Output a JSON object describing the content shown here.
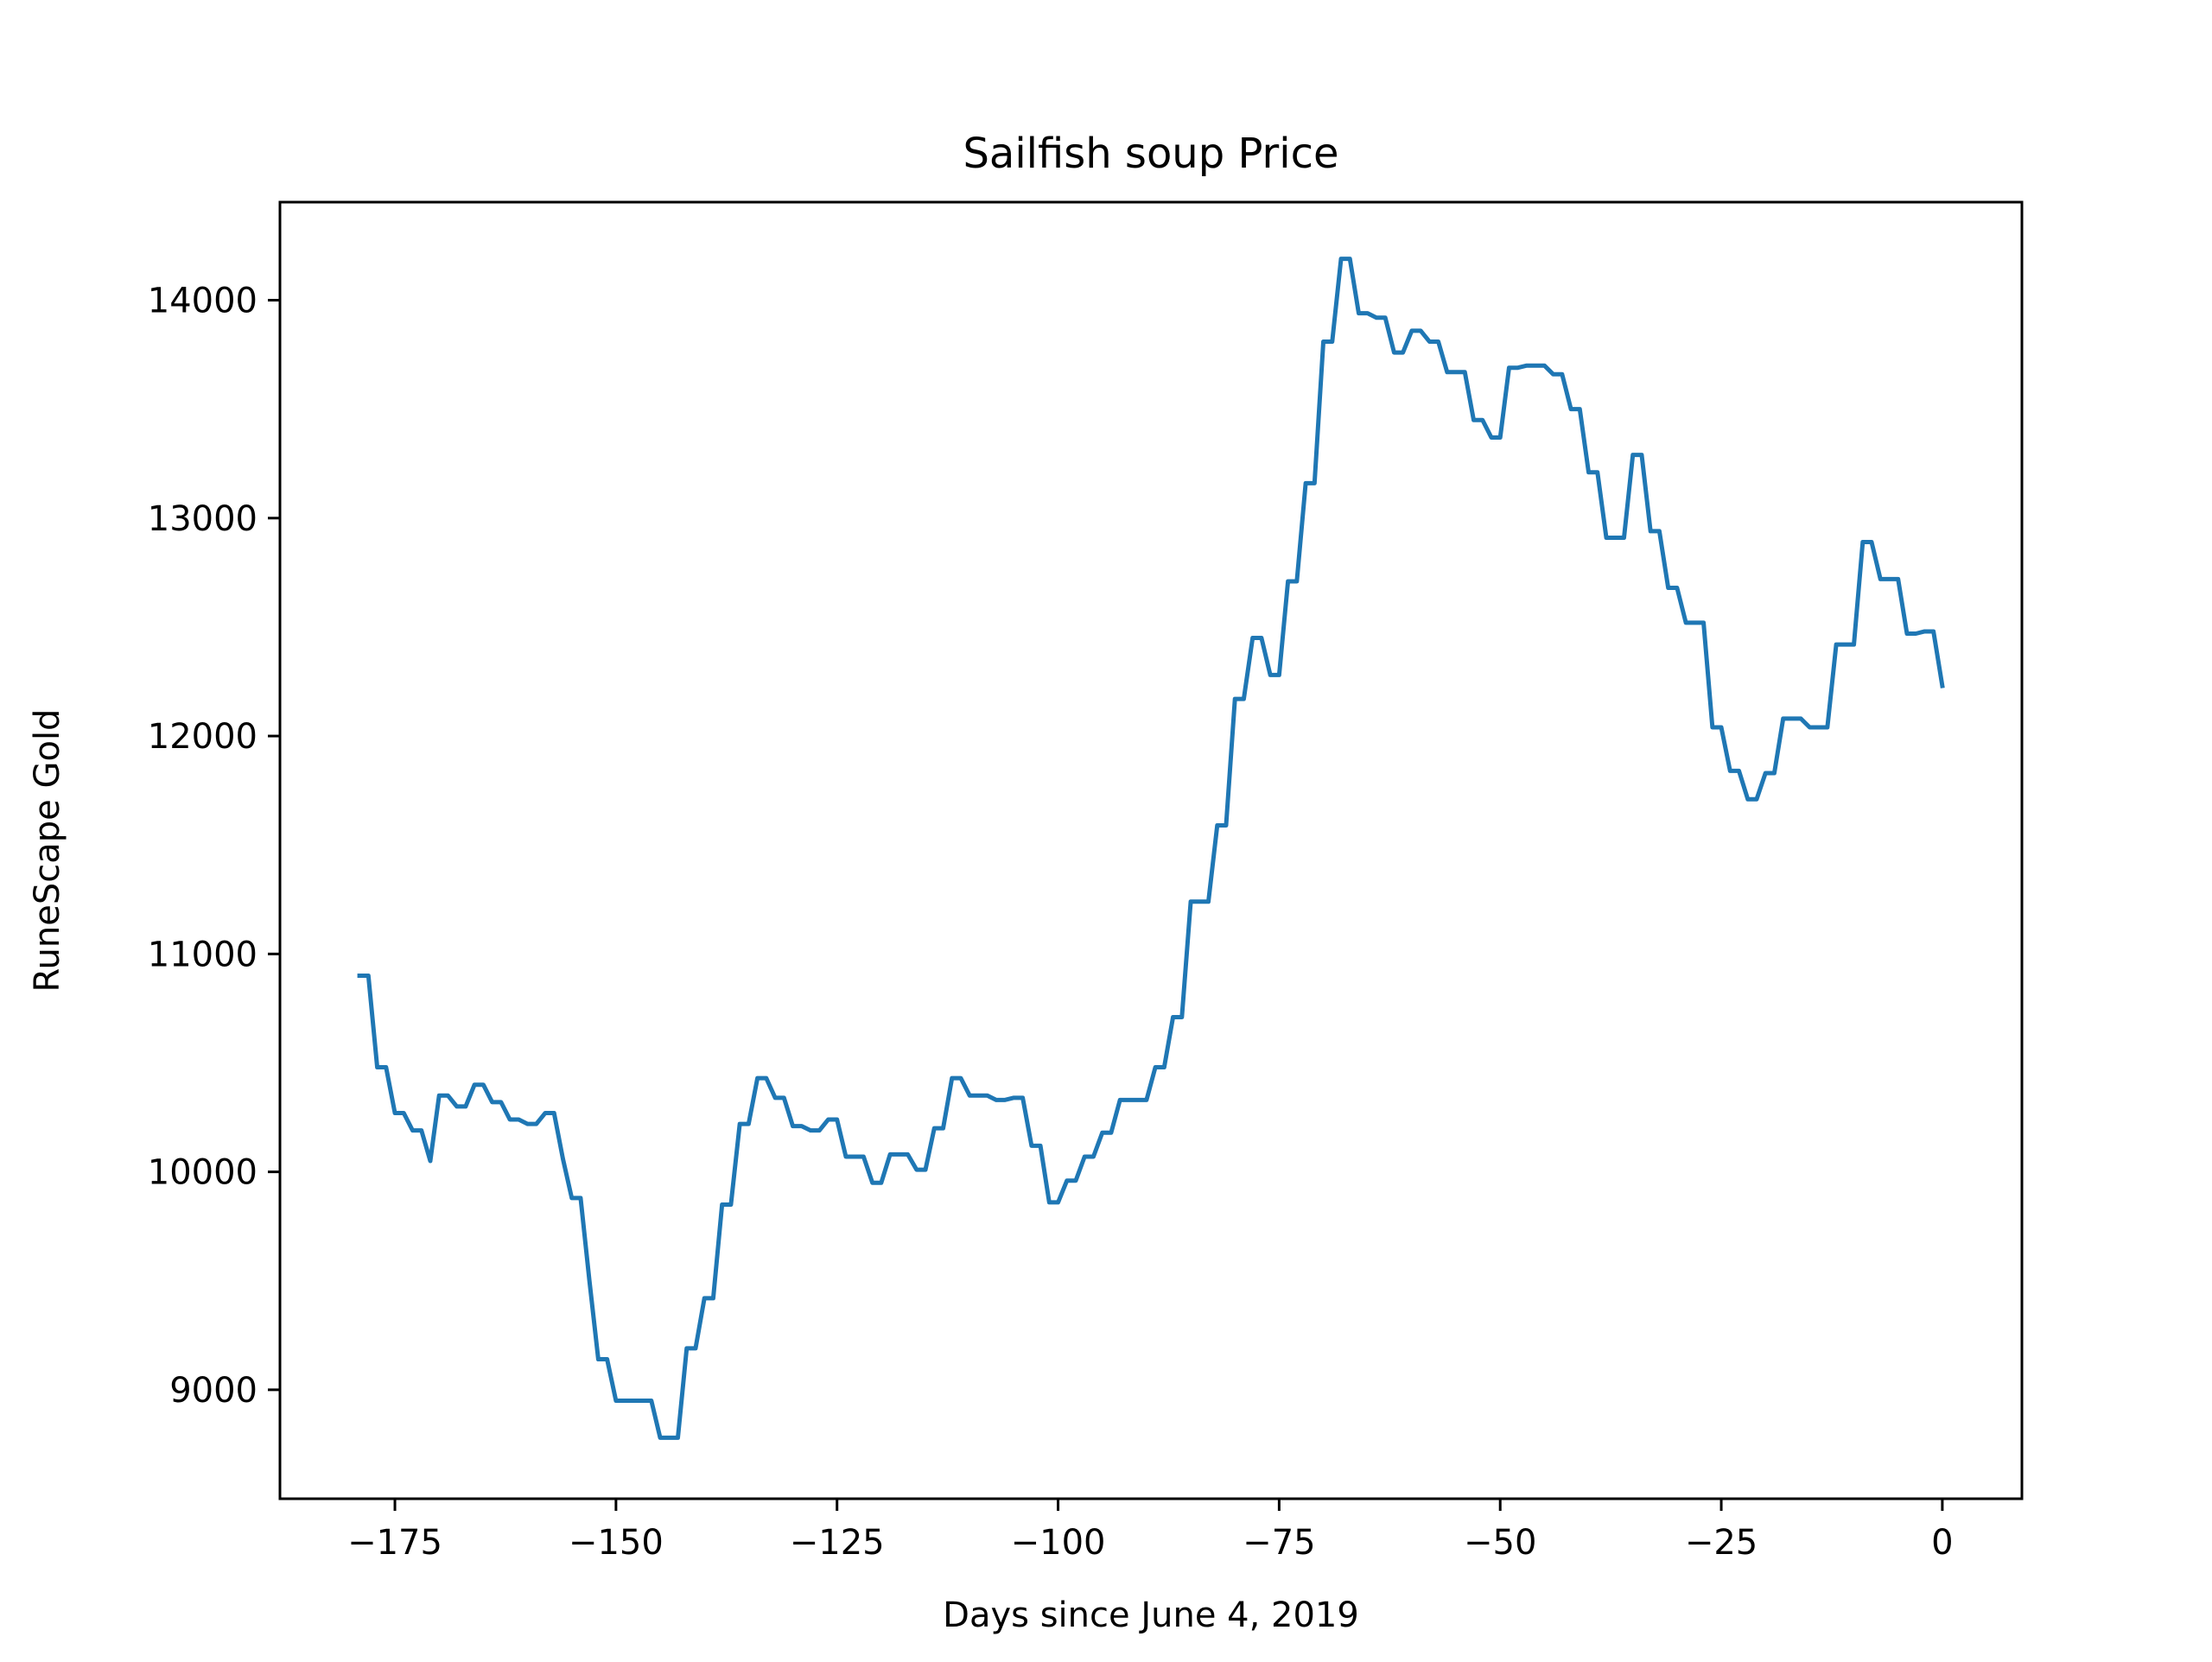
{
  "chart_data": {
    "type": "line",
    "title": "Sailfish soup Price",
    "xlabel": "Days since June 4, 2019",
    "ylabel": "RuneScape Gold",
    "xlim": [
      -188,
      9
    ],
    "ylim": [
      8500,
      14450
    ],
    "xticks": [
      {
        "value": -175,
        "label": "−175"
      },
      {
        "value": -150,
        "label": "−150"
      },
      {
        "value": -125,
        "label": "−125"
      },
      {
        "value": -100,
        "label": "−100"
      },
      {
        "value": -75,
        "label": "−75"
      },
      {
        "value": -50,
        "label": "−50"
      },
      {
        "value": -25,
        "label": "−25"
      },
      {
        "value": 0,
        "label": "0"
      }
    ],
    "yticks": [
      {
        "value": 9000,
        "label": "9000"
      },
      {
        "value": 10000,
        "label": "10000"
      },
      {
        "value": 11000,
        "label": "11000"
      },
      {
        "value": 12000,
        "label": "12000"
      },
      {
        "value": 13000,
        "label": "13000"
      },
      {
        "value": 14000,
        "label": "14000"
      }
    ],
    "grid": false,
    "line_color": "#1f77b4",
    "series": [
      {
        "name": "",
        "x": [
          -179,
          -178,
          -177,
          -176,
          -175,
          -174,
          -173,
          -172,
          -171,
          -170,
          -169,
          -168,
          -167,
          -166,
          -165,
          -164,
          -163,
          -162,
          -161,
          -160,
          -159,
          -158,
          -157,
          -156,
          -155,
          -154,
          -153,
          -152,
          -151,
          -150,
          -149,
          -148,
          -147,
          -146,
          -145,
          -144,
          -143,
          -142,
          -141,
          -140,
          -139,
          -138,
          -137,
          -136,
          -135,
          -134,
          -133,
          -132,
          -131,
          -130,
          -129,
          -128,
          -127,
          -126,
          -125,
          -124,
          -123,
          -122,
          -121,
          -120,
          -119,
          -118,
          -117,
          -116,
          -115,
          -114,
          -113,
          -112,
          -111,
          -110,
          -109,
          -108,
          -107,
          -106,
          -105,
          -104,
          -103,
          -102,
          -101,
          -100,
          -99,
          -98,
          -97,
          -96,
          -95,
          -94,
          -93,
          -92,
          -91,
          -90,
          -89,
          -88,
          -87,
          -86,
          -85,
          -84,
          -83,
          -82,
          -81,
          -80,
          -79,
          -78,
          -77,
          -76,
          -75,
          -74,
          -73,
          -72,
          -71,
          -70,
          -69,
          -68,
          -67,
          -66,
          -65,
          -64,
          -63,
          -62,
          -61,
          -60,
          -59,
          -58,
          -57,
          -56,
          -55,
          -54,
          -53,
          -52,
          -51,
          -50,
          -49,
          -48,
          -47,
          -46,
          -45,
          -44,
          -43,
          -42,
          -41,
          -40,
          -39,
          -38,
          -37,
          -36,
          -35,
          -34,
          -33,
          -32,
          -31,
          -30,
          -29,
          -28,
          -27,
          -26,
          -25,
          -24,
          -23,
          -22,
          -21,
          -20,
          -19,
          -18,
          -17,
          -16,
          -15,
          -14,
          -13,
          -12,
          -11,
          -10,
          -9,
          -8,
          -7,
          -6,
          -5,
          -4,
          -3,
          -2,
          -1,
          0
        ],
        "y": [
          10900,
          10900,
          10480,
          10480,
          10270,
          10270,
          10190,
          10190,
          10050,
          10350,
          10350,
          10300,
          10300,
          10400,
          10400,
          10320,
          10320,
          10240,
          10240,
          10220,
          10220,
          10270,
          10270,
          10060,
          9880,
          9880,
          9500,
          9140,
          9140,
          8950,
          8950,
          8950,
          8950,
          8950,
          8780,
          8780,
          8780,
          9190,
          9190,
          9420,
          9420,
          9850,
          9850,
          10220,
          10220,
          10430,
          10430,
          10340,
          10340,
          10210,
          10210,
          10190,
          10190,
          10240,
          10240,
          10070,
          10070,
          10070,
          9950,
          9950,
          10080,
          10080,
          10080,
          10010,
          10010,
          10200,
          10200,
          10430,
          10430,
          10350,
          10350,
          10350,
          10330,
          10330,
          10340,
          10340,
          10120,
          10120,
          9860,
          9860,
          9960,
          9960,
          10070,
          10070,
          10180,
          10180,
          10330,
          10330,
          10330,
          10330,
          10480,
          10480,
          10710,
          10710,
          11240,
          11240,
          11240,
          11590,
          11590,
          12170,
          12170,
          12450,
          12450,
          12280,
          12280,
          12710,
          12710,
          13160,
          13160,
          13810,
          13810,
          14190,
          14190,
          13940,
          13940,
          13920,
          13920,
          13760,
          13760,
          13860,
          13860,
          13810,
          13810,
          13670,
          13670,
          13670,
          13450,
          13450,
          13370,
          13370,
          13690,
          13690,
          13700,
          13700,
          13700,
          13660,
          13660,
          13500,
          13500,
          13210,
          13210,
          12910,
          12910,
          12910,
          13290,
          13290,
          12940,
          12940,
          12680,
          12680,
          12520,
          12520,
          12520,
          12040,
          12040,
          11840,
          11840,
          11710,
          11710,
          11830,
          11830,
          12080,
          12080,
          12080,
          12040,
          12040,
          12040,
          12420,
          12420,
          12420,
          12890,
          12890,
          12720,
          12720,
          12720,
          12470,
          12470,
          12480,
          12480,
          12230
        ]
      }
    ]
  }
}
